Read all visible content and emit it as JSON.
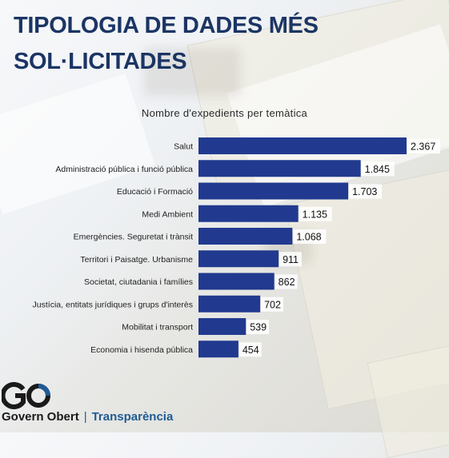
{
  "page": {
    "title": "TIPOLOGIA DE DADES MÉS\nSOL·LICITADES"
  },
  "chart_data": {
    "type": "bar",
    "orientation": "horizontal",
    "title": "Nombre d'expedients per temàtica",
    "categories": [
      "Salut",
      "Administració pública i funció pública",
      "Educació i Formació",
      "Medi Ambient",
      "Emergències. Seguretat i trànsit",
      "Territori i Paisatge. Urbanisme",
      "Societat, ciutadania i famílies",
      "Justícia, entitats jurídiques i grups d'interès",
      "Mobilitat i transport",
      "Economia i hisenda pública"
    ],
    "values": [
      2367,
      1845,
      1703,
      1135,
      1068,
      911,
      862,
      702,
      539,
      454
    ],
    "value_labels": [
      "2.367",
      "1.845",
      "1.703",
      "1.135",
      "1.068",
      "911",
      "862",
      "702",
      "539",
      "454"
    ],
    "bar_color": "#213a8f",
    "label_bg": "#ffffff"
  },
  "brand": {
    "logo_mark": "GO",
    "name": "Govern Obert",
    "section": "Transparència",
    "color_primary": "#1f5a95",
    "color_dark": "#1a1a1a"
  }
}
